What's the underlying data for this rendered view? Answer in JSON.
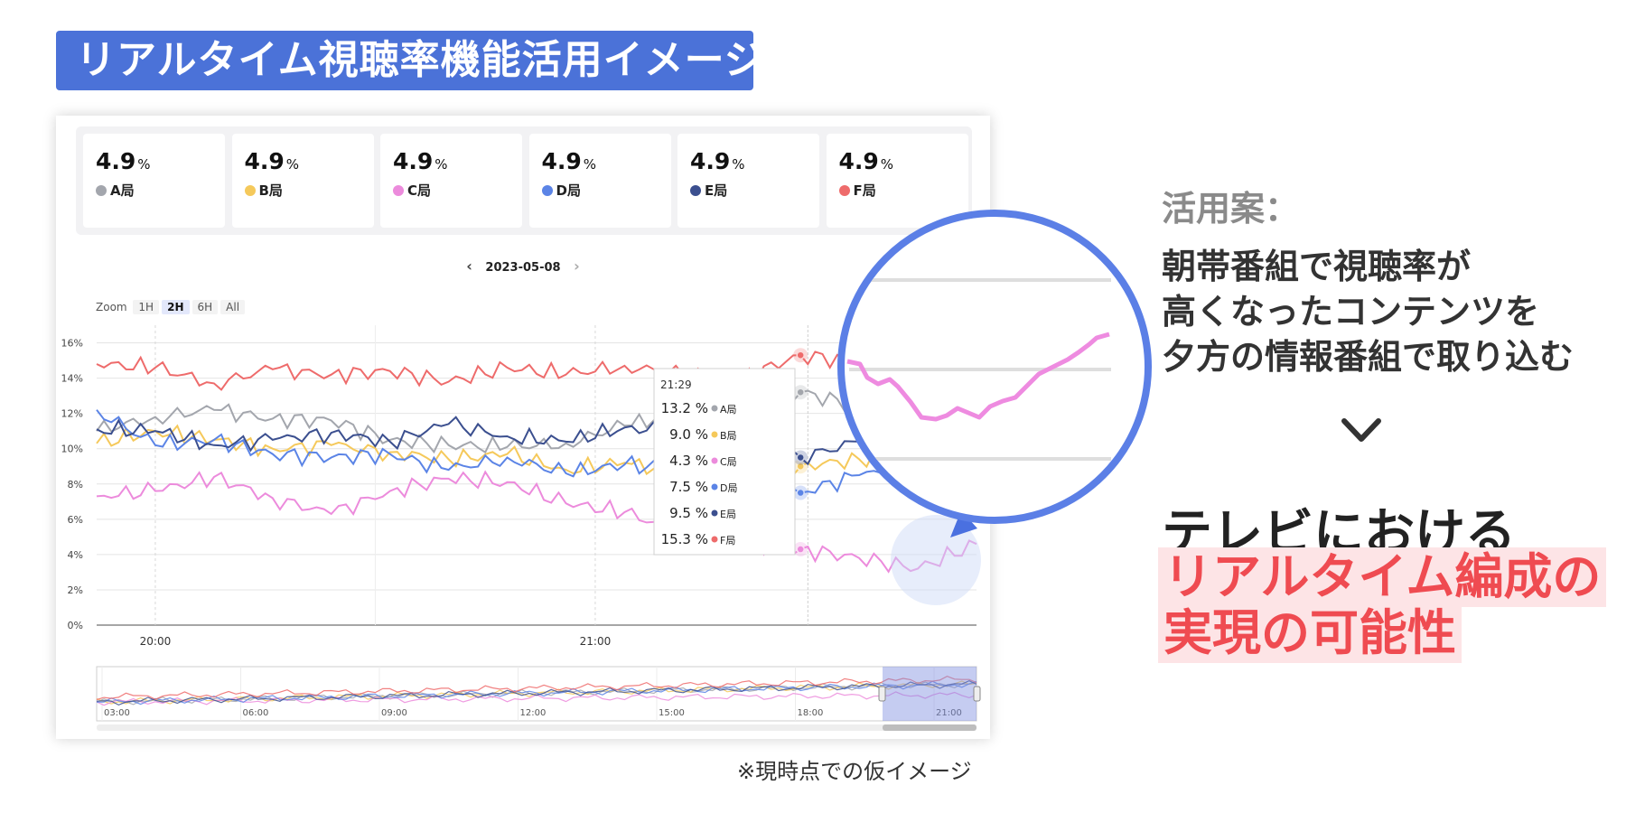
{
  "title": "リアルタイム視聴率機能活用イメージ",
  "dashboard": {
    "cards": [
      {
        "value": "4.9",
        "unit": "%",
        "label": "A局",
        "color": "#a3a6ad"
      },
      {
        "value": "4.9",
        "unit": "%",
        "label": "B局",
        "color": "#f5c95b"
      },
      {
        "value": "4.9",
        "unit": "%",
        "label": "C局",
        "color": "#ec8bdc"
      },
      {
        "value": "4.9",
        "unit": "%",
        "label": "D局",
        "color": "#5b84e6"
      },
      {
        "value": "4.9",
        "unit": "%",
        "label": "E局",
        "color": "#3b4f8f"
      },
      {
        "value": "4.9",
        "unit": "%",
        "label": "F局",
        "color": "#ee6b6b"
      }
    ],
    "date": "2023-05-08",
    "nav": {
      "prev": "‹",
      "next": "›"
    },
    "zoom": {
      "label": "Zoom",
      "options": [
        "1H",
        "2H",
        "6H",
        "All"
      ],
      "active": "2H"
    },
    "tooltip": {
      "time": "21:29",
      "rows": [
        {
          "value": "13.2 %",
          "label": "A局",
          "color": "#a3a6ad"
        },
        {
          "value": "9.0 %",
          "label": "B局",
          "color": "#f5c95b"
        },
        {
          "value": "4.3 %",
          "label": "C局",
          "color": "#ec8bdc"
        },
        {
          "value": "7.5 %",
          "label": "D局",
          "color": "#5b84e6"
        },
        {
          "value": "9.5 %",
          "label": "E局",
          "color": "#3b4f8f"
        },
        {
          "value": "15.3 %",
          "label": "F局",
          "color": "#ee6b6b"
        }
      ]
    }
  },
  "chart_data": {
    "type": "line",
    "ylim": [
      0,
      17
    ],
    "y_ticks": [
      "0%",
      "2%",
      "4%",
      "6%",
      "8%",
      "10%",
      "12%",
      "14%",
      "16%"
    ],
    "x_tick_labels": [
      "20:00",
      "21:00"
    ],
    "x_range": [
      "19:52",
      "21:53"
    ],
    "series": [
      {
        "name": "A局",
        "color": "#a3a6ad",
        "points": [
          [
            0,
            11.0
          ],
          [
            8,
            11.8
          ],
          [
            16,
            12.2
          ],
          [
            24,
            11.7
          ],
          [
            32,
            11.6
          ],
          [
            40,
            10.5
          ],
          [
            48,
            10.2
          ],
          [
            56,
            10.1
          ],
          [
            64,
            10.3
          ],
          [
            72,
            11.3
          ],
          [
            80,
            12.0
          ],
          [
            88,
            11.0
          ],
          [
            96,
            13.2
          ],
          [
            104,
            12.4
          ],
          [
            112,
            12.2
          ],
          [
            120,
            12.0
          ]
        ]
      },
      {
        "name": "B局",
        "color": "#f5c95b",
        "points": [
          [
            0,
            10.3
          ],
          [
            8,
            11.0
          ],
          [
            16,
            10.5
          ],
          [
            24,
            10.0
          ],
          [
            32,
            10.2
          ],
          [
            40,
            9.8
          ],
          [
            48,
            9.4
          ],
          [
            56,
            9.7
          ],
          [
            64,
            8.8
          ],
          [
            72,
            9.2
          ],
          [
            80,
            8.6
          ],
          [
            88,
            9.3
          ],
          [
            96,
            9.0
          ],
          [
            104,
            9.4
          ],
          [
            112,
            9.8
          ],
          [
            120,
            9.6
          ]
        ]
      },
      {
        "name": "C局",
        "color": "#ec8bdc",
        "points": [
          [
            0,
            7.3
          ],
          [
            8,
            7.6
          ],
          [
            16,
            8.4
          ],
          [
            24,
            7.2
          ],
          [
            32,
            6.3
          ],
          [
            40,
            7.6
          ],
          [
            48,
            8.3
          ],
          [
            56,
            8.1
          ],
          [
            64,
            6.9
          ],
          [
            72,
            6.4
          ],
          [
            80,
            5.2
          ],
          [
            88,
            4.5
          ],
          [
            96,
            4.3
          ],
          [
            104,
            3.8
          ],
          [
            112,
            3.2
          ],
          [
            120,
            4.6
          ]
        ]
      },
      {
        "name": "D局",
        "color": "#5b84e6",
        "points": [
          [
            0,
            12.2
          ],
          [
            8,
            10.2
          ],
          [
            16,
            10.5
          ],
          [
            24,
            9.7
          ],
          [
            32,
            9.5
          ],
          [
            40,
            9.7
          ],
          [
            48,
            8.8
          ],
          [
            56,
            9.5
          ],
          [
            64,
            8.6
          ],
          [
            72,
            9.1
          ],
          [
            80,
            8.8
          ],
          [
            88,
            8.0
          ],
          [
            96,
            7.5
          ],
          [
            104,
            8.5
          ],
          [
            112,
            8.9
          ],
          [
            120,
            9.2
          ]
        ]
      },
      {
        "name": "E局",
        "color": "#3b4f8f",
        "points": [
          [
            0,
            11.1
          ],
          [
            8,
            11.0
          ],
          [
            16,
            10.2
          ],
          [
            24,
            10.5
          ],
          [
            32,
            10.9
          ],
          [
            40,
            10.4
          ],
          [
            48,
            11.4
          ],
          [
            56,
            10.7
          ],
          [
            64,
            10.4
          ],
          [
            72,
            11.2
          ],
          [
            80,
            10.9
          ],
          [
            88,
            10.4
          ],
          [
            96,
            9.5
          ],
          [
            104,
            10.4
          ],
          [
            112,
            10.2
          ],
          [
            120,
            10.6
          ]
        ]
      },
      {
        "name": "F局",
        "color": "#ee6b6b",
        "points": [
          [
            0,
            14.8
          ],
          [
            8,
            14.6
          ],
          [
            16,
            13.7
          ],
          [
            24,
            14.5
          ],
          [
            32,
            14.2
          ],
          [
            40,
            14.4
          ],
          [
            48,
            13.8
          ],
          [
            56,
            14.6
          ],
          [
            64,
            14.2
          ],
          [
            72,
            14.7
          ],
          [
            80,
            14.2
          ],
          [
            88,
            14.0
          ],
          [
            96,
            15.3
          ],
          [
            104,
            14.9
          ],
          [
            112,
            14.6
          ],
          [
            120,
            14.3
          ]
        ]
      }
    ],
    "navigator_x_labels": [
      "03:00",
      "06:00",
      "09:00",
      "12:00",
      "15:00",
      "18:00",
      "21:00"
    ]
  },
  "panel": {
    "sub_heading": "活用案：",
    "plan_lines": [
      "朝帯番組で視聴率が",
      "高くなったコンテンツを",
      "夕方の情報番組で取り込む"
    ],
    "headline": "テレビにおける",
    "highlight_lines": [
      "リアルタイム編成の",
      "実現の可能性"
    ],
    "accent_color": "#ef4b51",
    "highlight_bg": "#fde4e6"
  },
  "note": "※現時点での仮イメージ",
  "icons": {
    "chevron": "chevron-down-icon",
    "magnifier": "magnifier-circle"
  }
}
